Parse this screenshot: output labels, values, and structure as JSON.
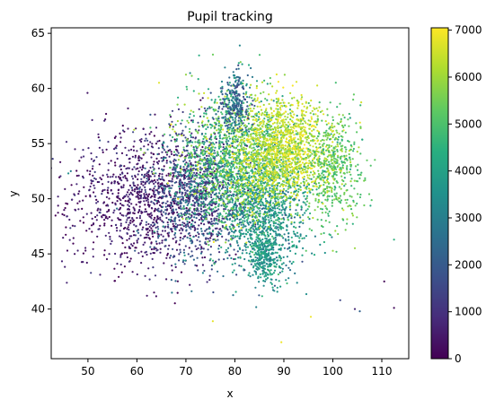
{
  "chart_data": {
    "type": "scatter",
    "title": "Pupil tracking",
    "xlabel": "x",
    "ylabel": "y",
    "xlim": [
      42.5,
      115.5
    ],
    "ylim": [
      35.5,
      65.5
    ],
    "xticks": [
      50,
      60,
      70,
      80,
      90,
      100,
      110
    ],
    "yticks": [
      40,
      45,
      50,
      55,
      60,
      65
    ],
    "grid": false,
    "colormap": "viridis",
    "colorbar": {
      "range": [
        0,
        7050
      ],
      "ticks": [
        0,
        1000,
        2000,
        3000,
        4000,
        5000,
        6000,
        7000
      ]
    },
    "point_count": 7000,
    "clusters": [
      {
        "cx": 62,
        "cy": 50,
        "sx": 8,
        "sy": 3.2,
        "c": 500,
        "cs": 450,
        "w": 0.16
      },
      {
        "cx": 73,
        "cy": 50.5,
        "sx": 5,
        "sy": 3,
        "c": 1800,
        "cs": 700,
        "w": 0.14
      },
      {
        "cx": 86,
        "cy": 49,
        "sx": 4.5,
        "sy": 2.8,
        "c": 3600,
        "cs": 700,
        "w": 0.15
      },
      {
        "cx": 80,
        "cy": 53.5,
        "sx": 6,
        "sy": 3,
        "c": 5000,
        "cs": 800,
        "w": 0.2
      },
      {
        "cx": 90,
        "cy": 54.5,
        "sx": 5,
        "sy": 2.2,
        "c": 6400,
        "cs": 500,
        "w": 0.2
      },
      {
        "cx": 100,
        "cy": 53,
        "sx": 3,
        "sy": 2.5,
        "c": 5200,
        "cs": 500,
        "w": 0.07
      },
      {
        "cx": 86,
        "cy": 45,
        "sx": 1.5,
        "sy": 1.2,
        "c": 3800,
        "cs": 400,
        "w": 0.04
      },
      {
        "cx": 80,
        "cy": 58.5,
        "sx": 1.5,
        "sy": 1.5,
        "c": 2500,
        "cs": 800,
        "w": 0.04
      }
    ],
    "outliers": [
      {
        "x": 112.5,
        "y": 40.1,
        "c": 200
      },
      {
        "x": 110.5,
        "y": 42.5,
        "c": 100
      },
      {
        "x": 101.5,
        "y": 40.8,
        "c": 1500
      },
      {
        "x": 104.5,
        "y": 40.0,
        "c": 800
      },
      {
        "x": 105.5,
        "y": 39.8,
        "c": 2200
      },
      {
        "x": 89.5,
        "y": 37.0,
        "c": 6900
      },
      {
        "x": 95.5,
        "y": 39.3,
        "c": 6900
      },
      {
        "x": 75.5,
        "y": 38.9,
        "c": 6800
      },
      {
        "x": 44.8,
        "y": 48.6,
        "c": 100
      },
      {
        "x": 45.8,
        "y": 45.3,
        "c": 200
      },
      {
        "x": 49.5,
        "y": 45.3,
        "c": 300
      },
      {
        "x": 49.8,
        "y": 44.2,
        "c": 400
      },
      {
        "x": 81.0,
        "y": 63.9,
        "c": 3200
      },
      {
        "x": 80.8,
        "y": 62.3,
        "c": 4200
      },
      {
        "x": 81.5,
        "y": 62.2,
        "c": 3800
      },
      {
        "x": 112.5,
        "y": 46.3,
        "c": 4500
      },
      {
        "x": 46.0,
        "y": 52.3,
        "c": 3500
      },
      {
        "x": 46.5,
        "y": 52.5,
        "c": 3000
      },
      {
        "x": 63.5,
        "y": 41.5,
        "c": 300
      },
      {
        "x": 66.0,
        "y": 42.7,
        "c": 400
      }
    ]
  }
}
